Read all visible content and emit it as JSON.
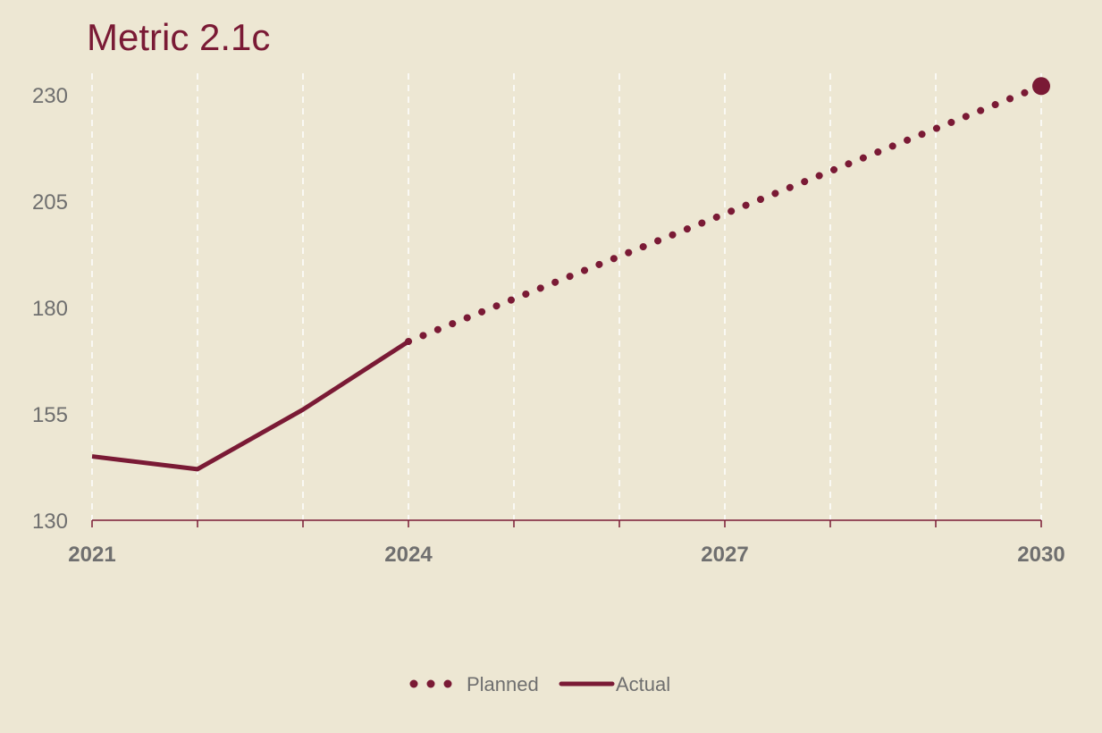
{
  "chart_data": {
    "type": "line",
    "title": "Metric 2.1c",
    "xlabel": "",
    "ylabel": "",
    "xlim": [
      2021,
      2030
    ],
    "ylim": [
      130,
      235
    ],
    "x_ticks": [
      2021,
      2024,
      2027,
      2030
    ],
    "y_ticks": [
      130,
      155,
      180,
      205,
      230
    ],
    "grid": {
      "vertical": true,
      "horizontal": false,
      "style": "dashed"
    },
    "legend_position": "bottom-center",
    "colors": {
      "line": "#7a1a35",
      "grid": "#ffffff",
      "text": "#6f6f6f",
      "background": "#ede7d3"
    },
    "series": [
      {
        "name": "Planned",
        "style": "dotted",
        "x": [
          2024,
          2030
        ],
        "y": [
          172,
          232
        ],
        "end_marker": true
      },
      {
        "name": "Actual",
        "style": "solid",
        "x": [
          2021,
          2022,
          2023,
          2024
        ],
        "y": [
          145,
          142,
          156,
          172
        ]
      }
    ]
  }
}
